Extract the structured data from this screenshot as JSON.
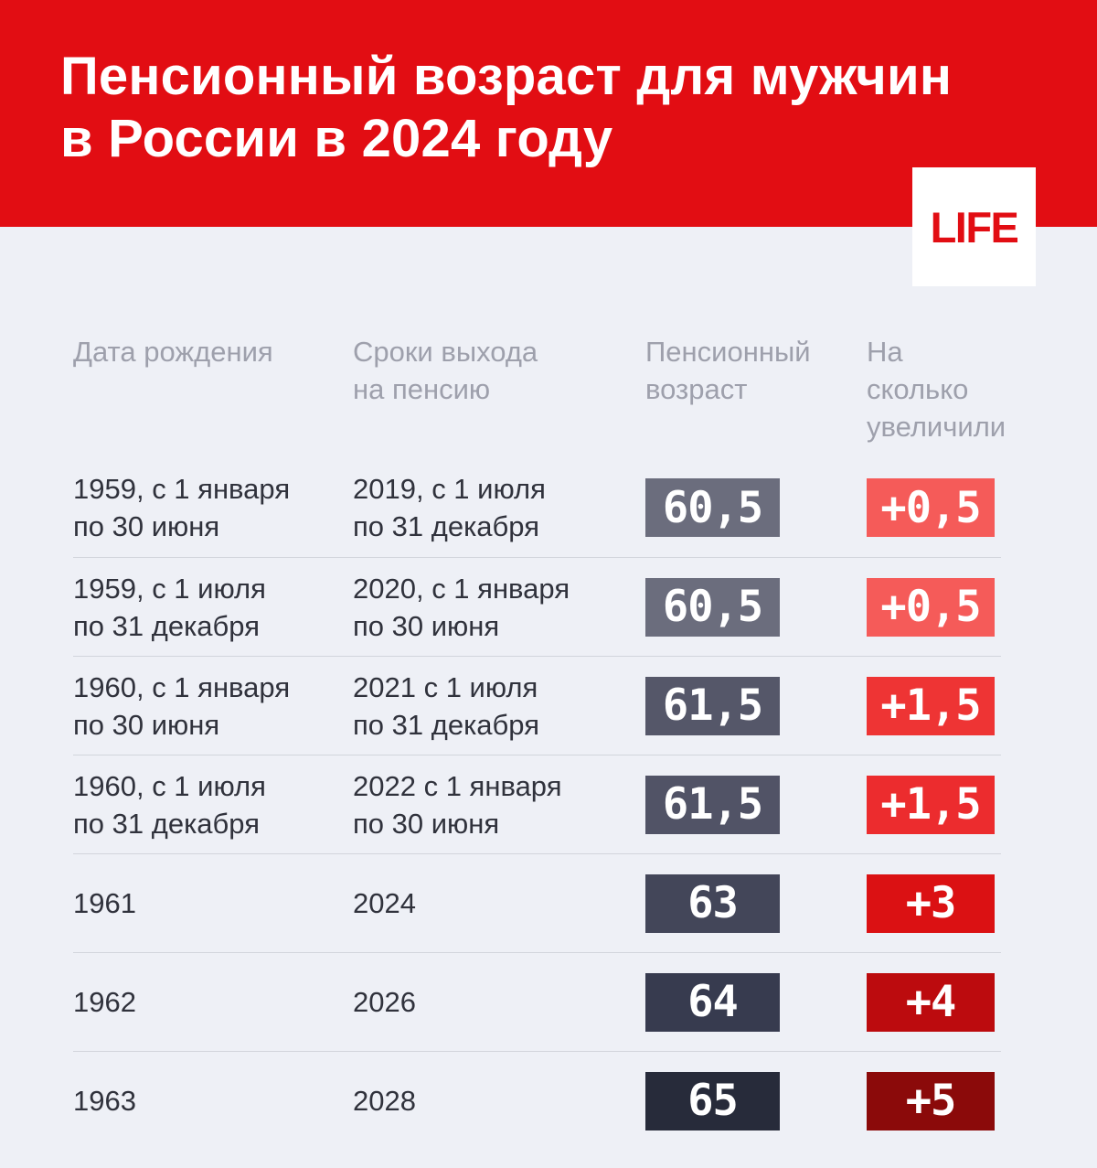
{
  "colors": {
    "page_background": "#EEF0F6",
    "banner_red": "#E20D13",
    "divider": "#D2D5DC",
    "column_header_text": "#9EA0AC",
    "body_text": "#30323C",
    "badge_text": "#FFFFFF"
  },
  "banner": {
    "title_line1": "Пенсионный возраст для мужчин",
    "title_line2": "в России в 2024 году",
    "logo_text": "LIFE"
  },
  "table": {
    "columns": [
      {
        "label": "Дата рождения"
      },
      {
        "label": "Сроки выхода\nна пенсию"
      },
      {
        "label": "Пенсионный\nвозраст"
      },
      {
        "label": "На сколько\nувеличили"
      }
    ],
    "rows": [
      {
        "birth": "1959, с 1 января\nпо 30 июня",
        "retirement": "2019, с 1 июля\nпо 31 декабря",
        "age": "60,5",
        "age_bg": "#6B6D7D",
        "increase": "+0,5",
        "increase_bg": "#F55B59"
      },
      {
        "birth": "1959, с 1 июля\nпо 31 декабря",
        "retirement": "2020, с 1 января\nпо 30 июня",
        "age": "60,5",
        "age_bg": "#6B6D7D",
        "increase": "+0,5",
        "increase_bg": "#F55B59"
      },
      {
        "birth": "1960, с 1 января\nпо 30 июня",
        "retirement": "2021 с 1 июля\nпо 31 декабря",
        "age": "61,5",
        "age_bg": "#555769",
        "increase": "+1,5",
        "increase_bg": "#EE3434"
      },
      {
        "birth": "1960, с 1 июля\nпо 31 декабря",
        "retirement": "2022 с 1 января\nпо 30 июня",
        "age": "61,5",
        "age_bg": "#515366",
        "increase": "+1,5",
        "increase_bg": "#EC2C2E"
      },
      {
        "birth": "1961",
        "retirement": "2024",
        "age": "63",
        "age_bg": "#434659",
        "increase": "+3",
        "increase_bg": "#DB1113"
      },
      {
        "birth": "1962",
        "retirement": "2026",
        "age": "64",
        "age_bg": "#373B4F",
        "increase": "+4",
        "increase_bg": "#BC0B0E"
      },
      {
        "birth": "1963",
        "retirement": "2028",
        "age": "65",
        "age_bg": "#272B3A",
        "increase": "+5",
        "increase_bg": "#8B0A0A"
      }
    ]
  },
  "chart_data": {
    "type": "table",
    "title": "Пенсионный возраст для мужчин в России в 2024 году",
    "columns": [
      "Дата рождения",
      "Сроки выхода на пенсию",
      "Пенсионный возраст",
      "На сколько увеличили"
    ],
    "rows": [
      [
        "1959, с 1 января по 30 июня",
        "2019, с 1 июля по 31 декабря",
        "60,5",
        "+0,5"
      ],
      [
        "1959, с 1 июля по 31 декабря",
        "2020, с 1 января по 30 июня",
        "60,5",
        "+0,5"
      ],
      [
        "1960, с 1 января по 30 июня",
        "2021 с 1 июля по 31 декабря",
        "61,5",
        "+1,5"
      ],
      [
        "1960, с 1 июля по 31 декабря",
        "2022 с 1 января по 30 июня",
        "61,5",
        "+1,5"
      ],
      [
        "1961",
        "2024",
        "63",
        "+3"
      ],
      [
        "1962",
        "2026",
        "64",
        "+4"
      ],
      [
        "1963",
        "2028",
        "65",
        "+5"
      ]
    ],
    "pension_age_values": [
      60.5,
      60.5,
      61.5,
      61.5,
      63,
      64,
      65
    ],
    "increase_values": [
      0.5,
      0.5,
      1.5,
      1.5,
      3,
      4,
      5
    ],
    "source": "LIFE"
  }
}
